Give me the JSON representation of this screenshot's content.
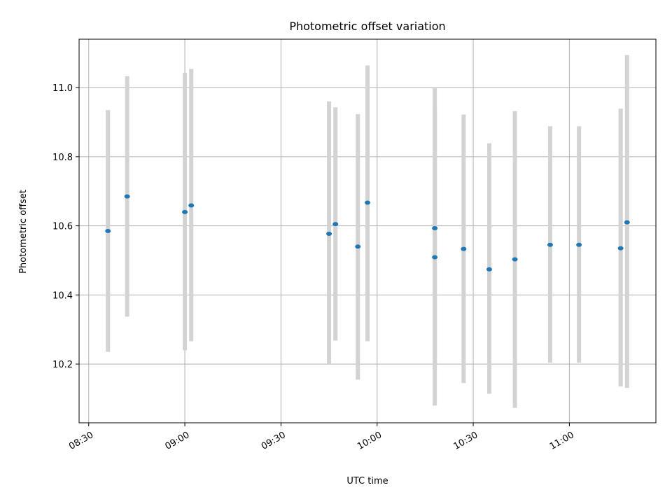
{
  "chart_data": {
    "type": "scatter",
    "title": "Photometric offset variation",
    "xlabel": "UTC time",
    "ylabel": "Photometric offset",
    "x_ticks": [
      "08:30",
      "09:00",
      "09:30",
      "10:00",
      "10:30",
      "11:00"
    ],
    "y_ticks": [
      "10.2",
      "10.4",
      "10.6",
      "10.8",
      "11.0"
    ],
    "xlim": [
      "08:27",
      "11:27"
    ],
    "ylim": [
      10.03,
      11.14
    ],
    "grid": true,
    "points": [
      {
        "time": "08:36",
        "value": 10.585,
        "low": 10.235,
        "high": 10.935
      },
      {
        "time": "08:42",
        "value": 10.685,
        "low": 10.337,
        "high": 11.033
      },
      {
        "time": "09:00",
        "value": 10.64,
        "low": 10.24,
        "high": 11.043
      },
      {
        "time": "09:02",
        "value": 10.659,
        "low": 10.266,
        "high": 11.054
      },
      {
        "time": "09:45",
        "value": 10.577,
        "low": 10.198,
        "high": 10.96
      },
      {
        "time": "09:47",
        "value": 10.605,
        "low": 10.268,
        "high": 10.943
      },
      {
        "time": "09:54",
        "value": 10.54,
        "low": 10.155,
        "high": 10.923
      },
      {
        "time": "09:57",
        "value": 10.667,
        "low": 10.266,
        "high": 11.064
      },
      {
        "time": "10:18",
        "value": 10.509,
        "low": 10.08,
        "high": 10.942
      },
      {
        "time": "10:18",
        "value": 10.593,
        "low": 10.196,
        "high": 10.998
      },
      {
        "time": "10:27",
        "value": 10.533,
        "low": 10.145,
        "high": 10.922
      },
      {
        "time": "10:35",
        "value": 10.474,
        "low": 10.114,
        "high": 10.839
      },
      {
        "time": "10:43",
        "value": 10.503,
        "low": 10.073,
        "high": 10.932
      },
      {
        "time": "10:54",
        "value": 10.545,
        "low": 10.204,
        "high": 10.888
      },
      {
        "time": "11:03",
        "value": 10.545,
        "low": 10.204,
        "high": 10.888
      },
      {
        "time": "11:16",
        "value": 10.535,
        "low": 10.135,
        "high": 10.939
      },
      {
        "time": "11:18",
        "value": 10.61,
        "low": 10.131,
        "high": 11.094
      }
    ],
    "colors": {
      "point": "#1f77b4",
      "errorbar": "#d3d3d3",
      "grid": "#b0b0b0",
      "axes": "#000000"
    }
  }
}
